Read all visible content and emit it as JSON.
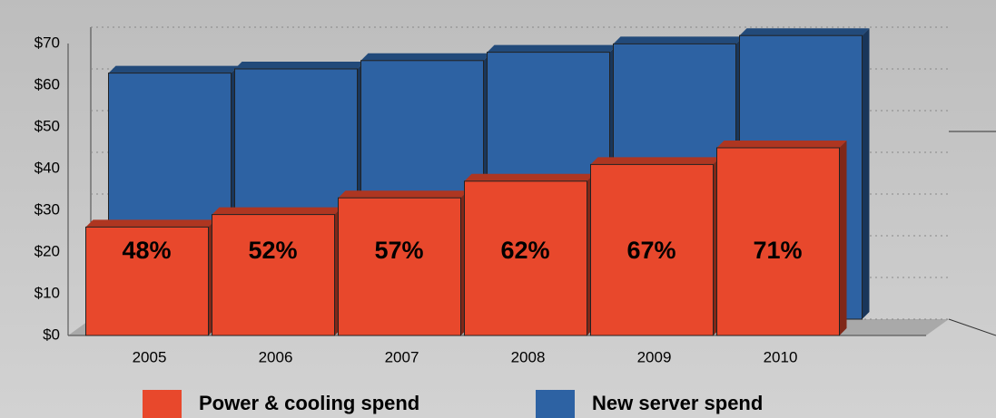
{
  "chart_data": {
    "type": "bar",
    "categories": [
      "2005",
      "2006",
      "2007",
      "2008",
      "2009",
      "2010"
    ],
    "series": [
      {
        "name": "Power & cooling spend",
        "color": "#e8482c",
        "values": [
          26,
          29,
          33,
          37,
          41,
          45
        ]
      },
      {
        "name": "New server spend",
        "color": "#2d62a3",
        "values": [
          59,
          60,
          62,
          64,
          66,
          68
        ]
      }
    ],
    "ratios": [
      {
        "value": 48,
        "label": "48%"
      },
      {
        "value": 52,
        "label": "52%"
      },
      {
        "value": 57,
        "label": "57%"
      },
      {
        "value": 62,
        "label": "62%"
      },
      {
        "value": 67,
        "label": "67%"
      },
      {
        "value": 71,
        "label": "71%"
      }
    ],
    "ylim": [
      0,
      70
    ],
    "yticks": [
      {
        "value": 0,
        "label": "$0"
      },
      {
        "value": 10,
        "label": "$10"
      },
      {
        "value": 20,
        "label": "$20"
      },
      {
        "value": 30,
        "label": "$30"
      },
      {
        "value": 40,
        "label": "$40"
      },
      {
        "value": 50,
        "label": "$50"
      },
      {
        "value": 60,
        "label": "$60"
      },
      {
        "value": 70,
        "label": "$70"
      }
    ],
    "grid": true,
    "legend": "bottom"
  }
}
